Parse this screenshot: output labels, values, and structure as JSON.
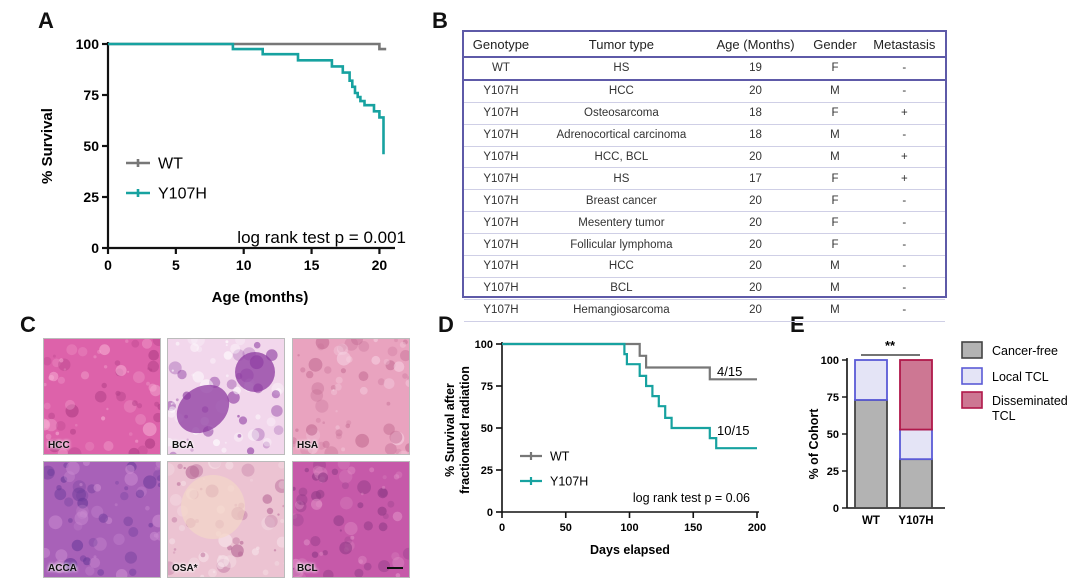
{
  "panels": {
    "a": "A",
    "b": "B",
    "c": "C",
    "d": "D",
    "e": "E"
  },
  "colors": {
    "wt": "#777777",
    "y107h": "#17a2a0",
    "table_border": "#5e5aa8",
    "cancer_free": "#b3b3b3",
    "local_tcl": "#e4e4f6",
    "local_tcl_edge": "#5b5bd6",
    "disseminated": "#cd7793",
    "disseminated_edge": "#b0184a"
  },
  "chart_data": [
    {
      "id": "A",
      "type": "line",
      "xlabel": "Age (months)",
      "ylabel": "% Survival",
      "xlim": [
        0,
        21
      ],
      "ylim": [
        0,
        100
      ],
      "xticks": [
        "0",
        "5",
        "10",
        "15",
        "20"
      ],
      "yticks": [
        "0",
        "25",
        "50",
        "75",
        "100"
      ],
      "legend": [
        "WT",
        "Y107H"
      ],
      "annotation": "log rank test p = 0.001",
      "series": [
        {
          "name": "WT",
          "x": [
            0,
            20.0,
            20.0,
            20.5
          ],
          "y": [
            100,
            100,
            97.5,
            97.5
          ]
        },
        {
          "name": "Y107H",
          "x": [
            0,
            9.2,
            9.2,
            11.4,
            11.4,
            14.0,
            14.0,
            16.5,
            16.5,
            17.3,
            17.3,
            17.8,
            17.8,
            18.0,
            18.0,
            18.2,
            18.2,
            18.4,
            18.4,
            18.6,
            18.6,
            18.9,
            18.9,
            19.6,
            19.6,
            20.0,
            20.0,
            20.3,
            20.3
          ],
          "y": [
            100,
            100,
            97.5,
            97.5,
            95,
            95,
            92,
            92,
            89,
            89,
            86,
            86,
            82,
            82,
            79,
            79,
            76,
            76,
            74,
            74,
            72,
            72,
            70,
            70,
            67,
            67,
            64,
            64,
            46
          ]
        }
      ]
    },
    {
      "id": "D",
      "type": "line",
      "xlabel": "Days elapsed",
      "ylabel": "% Survival after fractionated radiation",
      "ylabel_lines": [
        "% Survival after",
        "fractionated radiation"
      ],
      "xlim": [
        0,
        200
      ],
      "ylim": [
        0,
        100
      ],
      "xticks": [
        "0",
        "50",
        "100",
        "150",
        "200"
      ],
      "yticks": [
        "0",
        "25",
        "50",
        "75",
        "100"
      ],
      "legend": [
        "WT",
        "Y107H"
      ],
      "annotation": "log rank test p = 0.06",
      "end_labels": [
        "4/15",
        "10/15"
      ],
      "series": [
        {
          "name": "WT",
          "x": [
            0,
            108,
            108,
            113,
            113,
            163,
            163,
            200
          ],
          "y": [
            100,
            100,
            93,
            93,
            86,
            86,
            79,
            79
          ]
        },
        {
          "name": "Y107H",
          "x": [
            0,
            96,
            96,
            98,
            98,
            108,
            108,
            113,
            113,
            118,
            118,
            123,
            123,
            128,
            128,
            133,
            133,
            163,
            163,
            168,
            168,
            188,
            188,
            200
          ],
          "y": [
            100,
            100,
            94,
            94,
            88,
            88,
            81,
            81,
            75,
            75,
            69,
            69,
            63,
            63,
            56,
            56,
            50,
            50,
            44,
            44,
            38,
            38,
            38,
            38
          ]
        }
      ]
    },
    {
      "id": "E",
      "type": "bar",
      "stacked": true,
      "categories": [
        "WT",
        "Y107H"
      ],
      "ylabel": "% of Cohort",
      "ylim": [
        0,
        100
      ],
      "yticks": [
        "0",
        "25",
        "50",
        "75",
        "100"
      ],
      "significance": "**",
      "series": [
        {
          "name": "Cancer-free",
          "values": [
            73,
            33
          ]
        },
        {
          "name": "Local TCL",
          "values": [
            27,
            20
          ]
        },
        {
          "name": "Disseminated TCL",
          "values": [
            0,
            47
          ]
        }
      ],
      "legend_lines": [
        [
          "Cancer-free"
        ],
        [
          "Local TCL"
        ],
        [
          "Disseminated",
          "TCL"
        ]
      ]
    }
  ],
  "table": {
    "headers": [
      "Genotype",
      "Tumor type",
      "Age (Months)",
      "Gender",
      "Metastasis"
    ],
    "rows": [
      [
        "WT",
        "HS",
        "19",
        "F",
        "-"
      ],
      [
        "Y107H",
        "HCC",
        "20",
        "M",
        "-"
      ],
      [
        "Y107H",
        "Osteosarcoma",
        "18",
        "F",
        "+"
      ],
      [
        "Y107H",
        "Adrenocortical carcinoma",
        "18",
        "M",
        "-"
      ],
      [
        "Y107H",
        "HCC, BCL",
        "20",
        "M",
        "+"
      ],
      [
        "Y107H",
        "HS",
        "17",
        "F",
        "+"
      ],
      [
        "Y107H",
        "Breast cancer",
        "20",
        "F",
        "-"
      ],
      [
        "Y107H",
        "Mesentery tumor",
        "20",
        "F",
        "-"
      ],
      [
        "Y107H",
        "Follicular lymphoma",
        "20",
        "F",
        "-"
      ],
      [
        "Y107H",
        "HCC",
        "20",
        "M",
        "-"
      ],
      [
        "Y107H",
        "BCL",
        "20",
        "M",
        "-"
      ],
      [
        "Y107H",
        "Hemangiosarcoma",
        "20",
        "M",
        "-"
      ]
    ]
  },
  "histology": [
    {
      "label": "HCC",
      "base": "#dd62aa",
      "spot": "#f4a7d0",
      "dark": "#b03e86"
    },
    {
      "label": "BCA",
      "base": "#f2d7ec",
      "spot": "#ffffff",
      "dark": "#8c3aa0"
    },
    {
      "label": "HSA",
      "base": "#e9a3bf",
      "spot": "#f6d2e2",
      "dark": "#c46d94"
    },
    {
      "label": "ACCA",
      "base": "#a861b8",
      "spot": "#c98ad0",
      "dark": "#6b3a9a"
    },
    {
      "label": "OSA*",
      "base": "#ecc3d2",
      "spot": "#f7e4ea",
      "dark": "#b86a98"
    },
    {
      "label": "BCL",
      "base": "#c659a9",
      "spot": "#e08fc6",
      "dark": "#8f3a86"
    }
  ]
}
